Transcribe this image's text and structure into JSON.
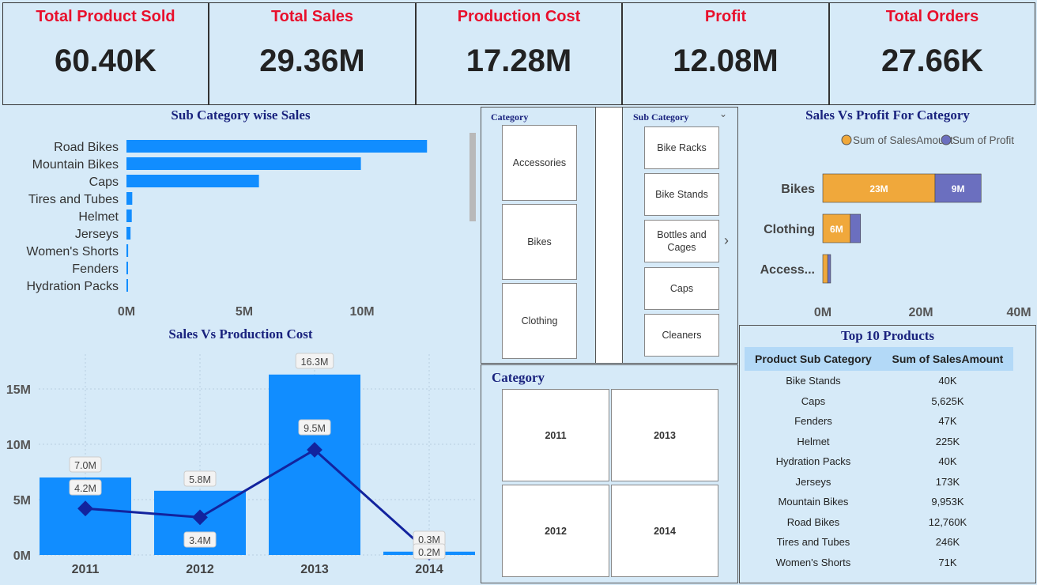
{
  "kpis": [
    {
      "title": "Total Product Sold",
      "value": "60.40K"
    },
    {
      "title": "Total Sales",
      "value": "29.36M"
    },
    {
      "title": "Production Cost",
      "value": "17.28M"
    },
    {
      "title": "Profit",
      "value": "12.08M"
    },
    {
      "title": "Total Orders",
      "value": "27.66K"
    }
  ],
  "slicers": {
    "category": {
      "header": "Category",
      "items": [
        "Accessories",
        "Bikes",
        "Clothing"
      ]
    },
    "sub_category": {
      "header": "Sub Category",
      "items": [
        "Bike Racks",
        "Bike Stands",
        "Bottles and Cages",
        "Caps",
        "Cleaners"
      ]
    },
    "year": {
      "header": "Category",
      "items": [
        "2011",
        "2013",
        "2012",
        "2014"
      ]
    }
  },
  "top_products": {
    "title": "Top 10 Products",
    "columns": [
      "Product Sub Category",
      "Sum of SalesAmount"
    ],
    "rows": [
      [
        "Bike Stands",
        "40K"
      ],
      [
        "Caps",
        "5,625K"
      ],
      [
        "Fenders",
        "47K"
      ],
      [
        "Helmet",
        "225K"
      ],
      [
        "Hydration Packs",
        "40K"
      ],
      [
        "Jerseys",
        "173K"
      ],
      [
        "Mountain Bikes",
        "9,953K"
      ],
      [
        "Road Bikes",
        "12,760K"
      ],
      [
        "Tires and Tubes",
        "246K"
      ],
      [
        "Women's Shorts",
        "71K"
      ]
    ]
  },
  "colors": {
    "bar_blue": "#118dff",
    "line_navy": "#12239e",
    "orange": "#f0a83b",
    "purple": "#6b6fbf",
    "kpi_red": "#e8102c"
  },
  "chart_data": [
    {
      "type": "bar",
      "orientation": "horizontal",
      "title": "Sub Category wise Sales",
      "categories": [
        "Road Bikes",
        "Mountain Bikes",
        "Caps",
        "Tires and Tubes",
        "Helmet",
        "Jerseys",
        "Women's Shorts",
        "Fenders",
        "Hydration Packs"
      ],
      "values": [
        12.76,
        9.953,
        5.625,
        0.246,
        0.225,
        0.173,
        0.071,
        0.047,
        0.04
      ],
      "xticks": [
        "0M",
        "5M",
        "10M"
      ],
      "xlim": [
        0,
        15
      ]
    },
    {
      "type": "bar",
      "title": "Sales Vs Production Cost",
      "categories": [
        "2011",
        "2012",
        "2013",
        "2014"
      ],
      "series": [
        {
          "type": "bar",
          "values": [
            7.0,
            5.8,
            16.3,
            0.3
          ],
          "labels": [
            "7.0M",
            "5.8M",
            "16.3M",
            "0.3M"
          ]
        },
        {
          "type": "line",
          "values": [
            4.2,
            3.4,
            9.5,
            0.2
          ],
          "labels": [
            "4.2M",
            "3.4M",
            "9.5M",
            "0.2M"
          ]
        }
      ],
      "yticks": [
        "0M",
        "5M",
        "10M",
        "15M"
      ],
      "ylim": [
        0,
        18
      ]
    },
    {
      "type": "bar",
      "orientation": "horizontal",
      "stacked": true,
      "title": "Sales Vs Profit For Category",
      "categories": [
        "Bikes",
        "Clothing",
        "Access..."
      ],
      "series": [
        {
          "name": "Sum of SalesAmount",
          "values": [
            22.9,
            5.6,
            1.0
          ],
          "labels": [
            "23M",
            "6M",
            ""
          ]
        },
        {
          "name": "Sum of Profit",
          "values": [
            9.4,
            2.1,
            0.6
          ],
          "labels": [
            "9M",
            "",
            ""
          ]
        }
      ],
      "xticks": [
        "0M",
        "20M",
        "40M"
      ],
      "xlim": [
        0,
        40
      ],
      "legend": "top-right"
    }
  ]
}
